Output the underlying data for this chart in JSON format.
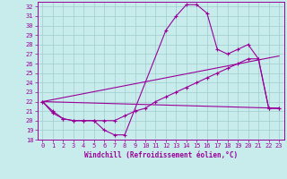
{
  "xlabel": "Windchill (Refroidissement éolien,°C)",
  "xlim": [
    -0.5,
    23.5
  ],
  "ylim": [
    18,
    32.5
  ],
  "xticks": [
    0,
    1,
    2,
    3,
    4,
    5,
    6,
    7,
    8,
    9,
    10,
    11,
    12,
    13,
    14,
    15,
    16,
    17,
    18,
    19,
    20,
    21,
    22,
    23
  ],
  "yticks": [
    18,
    19,
    20,
    21,
    22,
    23,
    24,
    25,
    26,
    27,
    28,
    29,
    30,
    31,
    32
  ],
  "bg_color": "#c8ecec",
  "line_color": "#990099",
  "grid_color": "#a0cccc",
  "lines": [
    {
      "x": [
        0,
        1,
        2,
        3,
        4,
        5,
        6,
        7,
        8,
        12,
        13,
        14,
        15,
        16,
        17,
        18,
        19,
        20,
        21,
        22,
        23
      ],
      "y": [
        22,
        21,
        20.2,
        20,
        20,
        20,
        19,
        18.5,
        18.5,
        29.5,
        31,
        32.2,
        32.2,
        31.3,
        27.5,
        27.0,
        27.5,
        28,
        26.5,
        21.3,
        21.3
      ],
      "has_markers": true
    },
    {
      "x": [
        0,
        1,
        2,
        3,
        4,
        5,
        6,
        7,
        8,
        9,
        10,
        11,
        12,
        13,
        14,
        15,
        16,
        17,
        18,
        19,
        20,
        21,
        22,
        23
      ],
      "y": [
        22,
        20.8,
        20.2,
        20,
        20,
        20,
        20,
        20,
        20.5,
        21,
        21.3,
        22,
        22.5,
        23,
        23.5,
        24,
        24.5,
        25,
        25.5,
        26.0,
        26.5,
        26.5,
        21.3,
        21.3
      ],
      "has_markers": true
    },
    {
      "x": [
        0,
        23
      ],
      "y": [
        22,
        26.8
      ],
      "has_markers": false
    },
    {
      "x": [
        0,
        23
      ],
      "y": [
        22,
        21.3
      ],
      "has_markers": false
    }
  ]
}
